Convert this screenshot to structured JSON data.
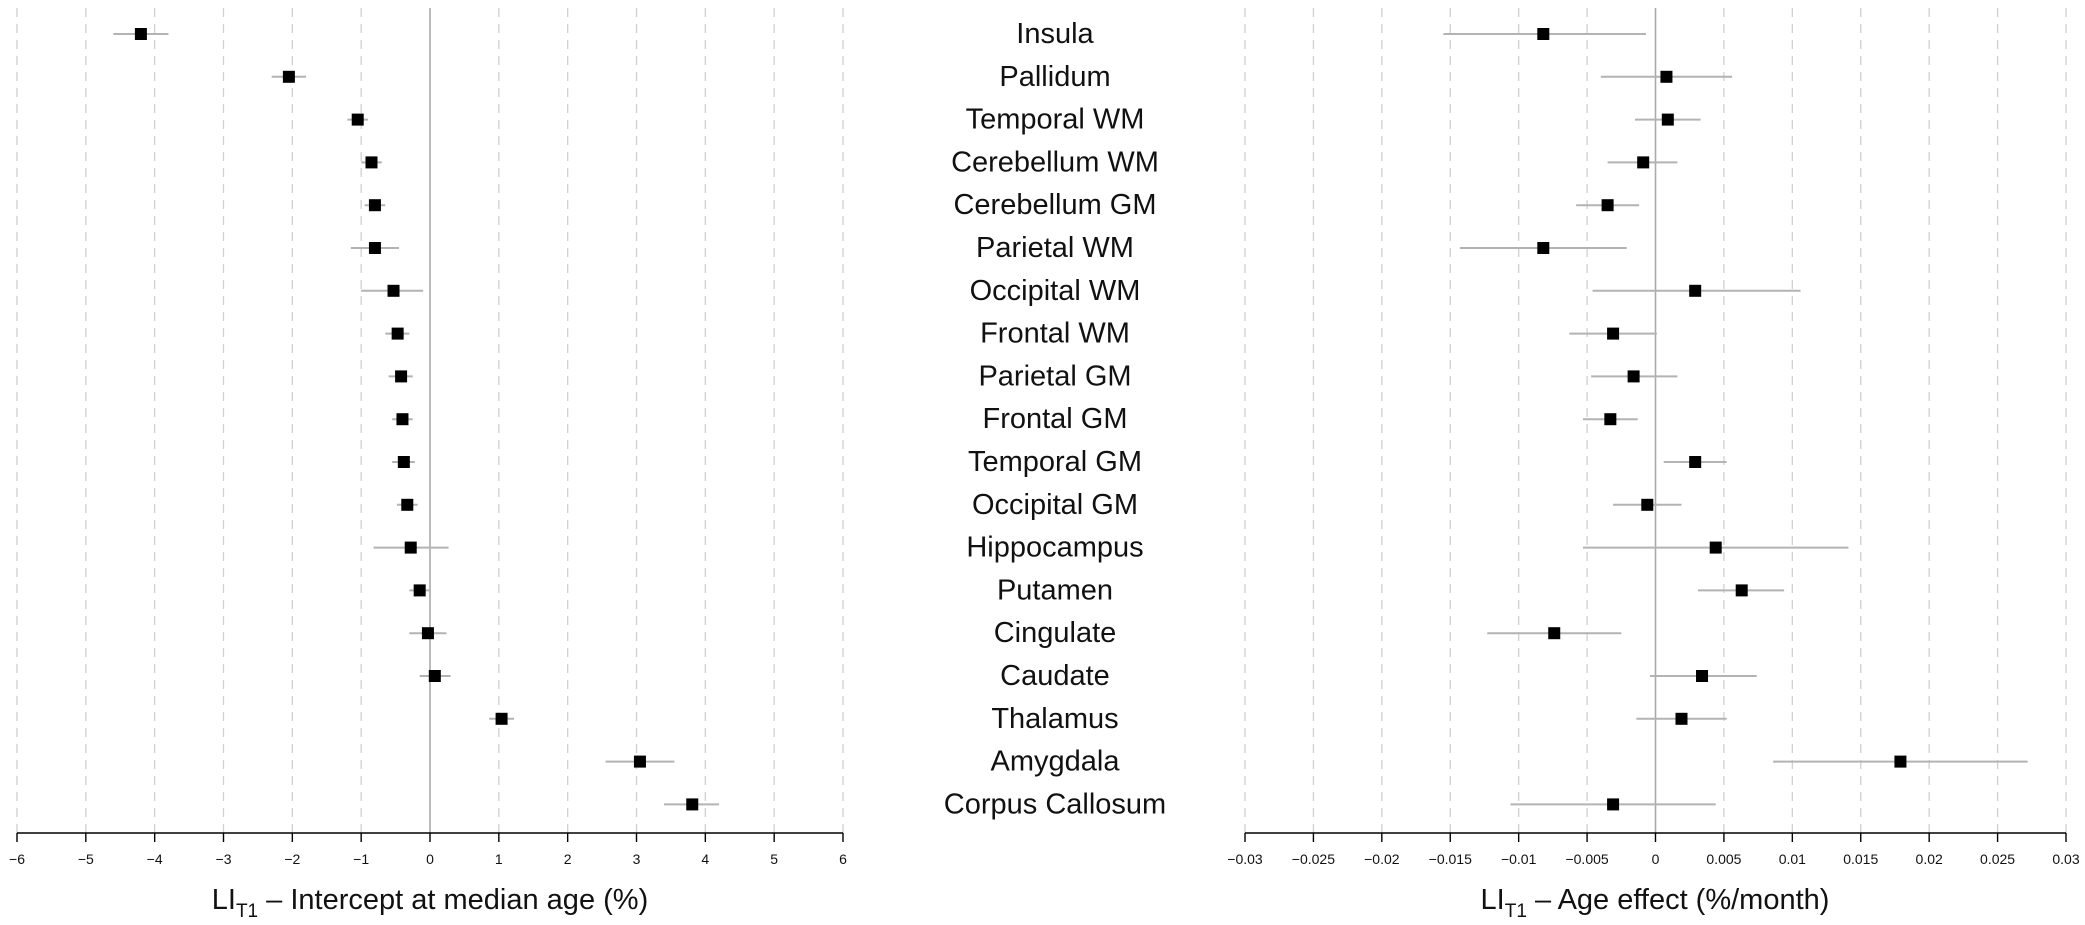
{
  "colors": {
    "marker": "#000000",
    "error_bar": "#b3b3b3",
    "zero_line": "#aaaaaa",
    "grid": "#d0d0d0",
    "axis": "#000000"
  },
  "regions": [
    "Insula",
    "Pallidum",
    "Temporal WM",
    "Cerebellum WM",
    "Cerebellum GM",
    "Parietal WM",
    "Occipital WM",
    "Frontal WM",
    "Parietal GM",
    "Frontal GM",
    "Temporal GM",
    "Occipital GM",
    "Hippocampus",
    "Putamen",
    "Cingulate",
    "Caudate",
    "Thalamus",
    "Amygdala",
    "Corpus Callosum"
  ],
  "chart_data": [
    {
      "type": "forest",
      "name": "intercept",
      "title": "",
      "xlabel_main": "LI",
      "xlabel_sub": "T1",
      "xlabel_rest": " – Intercept at median age (%)",
      "xlim": [
        -6,
        6
      ],
      "ticks": [
        -6,
        -5,
        -4,
        -3,
        -2,
        -1,
        0,
        1,
        2,
        3,
        4,
        5,
        6
      ],
      "tick_labels": [
        "−6",
        "−5",
        "−4",
        "−3",
        "−2",
        "−1",
        "0",
        "1",
        "2",
        "3",
        "4",
        "5",
        "6"
      ],
      "estimates": [
        -4.2,
        -2.05,
        -1.05,
        -0.85,
        -0.8,
        -0.8,
        -0.53,
        -0.47,
        -0.42,
        -0.4,
        -0.38,
        -0.33,
        -0.28,
        -0.15,
        -0.03,
        0.07,
        1.04,
        3.05,
        3.81
      ],
      "lower": [
        -4.6,
        -2.3,
        -1.2,
        -1.0,
        -0.95,
        -1.15,
        -1.0,
        -0.65,
        -0.6,
        -0.55,
        -0.55,
        -0.48,
        -0.82,
        -0.3,
        -0.3,
        -0.15,
        0.86,
        2.55,
        3.4
      ],
      "upper": [
        -3.8,
        -1.8,
        -0.9,
        -0.7,
        -0.65,
        -0.45,
        -0.1,
        -0.3,
        -0.25,
        -0.25,
        -0.22,
        -0.18,
        0.27,
        0.0,
        0.24,
        0.3,
        1.22,
        3.55,
        4.2
      ]
    },
    {
      "type": "forest",
      "name": "age_effect",
      "title": "",
      "xlabel_main": "LI",
      "xlabel_sub": "T1",
      "xlabel_rest": " – Age effect (%/month)",
      "xlim": [
        -0.03,
        0.03
      ],
      "ticks": [
        -0.03,
        -0.025,
        -0.02,
        -0.015,
        -0.01,
        -0.005,
        0,
        0.005,
        0.01,
        0.015,
        0.02,
        0.025,
        0.03
      ],
      "tick_labels": [
        "−0.03",
        "−0.025",
        "−0.02",
        "−0.015",
        "−0.01",
        "−0.005",
        "0",
        "0.005",
        "0.01",
        "0.015",
        "0.02",
        "0.025",
        "0.03"
      ],
      "estimates": [
        -0.0082,
        0.0008,
        0.0009,
        -0.0009,
        -0.0035,
        -0.0082,
        0.0029,
        -0.0031,
        -0.0016,
        -0.0033,
        0.0029,
        -0.0006,
        0.0044,
        0.0063,
        -0.0074,
        0.0034,
        0.0019,
        0.0179,
        -0.0031
      ],
      "lower": [
        -0.0155,
        -0.004,
        -0.0015,
        -0.0035,
        -0.0058,
        -0.0143,
        -0.0046,
        -0.0063,
        -0.0047,
        -0.0053,
        0.0006,
        -0.0031,
        -0.0053,
        0.0031,
        -0.0123,
        -0.0004,
        -0.0014,
        0.0086,
        -0.0106
      ],
      "upper": [
        -0.0007,
        0.0056,
        0.0033,
        0.0016,
        -0.0012,
        -0.0021,
        0.0106,
        0.0001,
        0.0016,
        -0.0013,
        0.0052,
        0.0019,
        0.0141,
        0.0094,
        -0.0025,
        0.0074,
        0.0052,
        0.0272,
        0.0044
      ]
    }
  ]
}
